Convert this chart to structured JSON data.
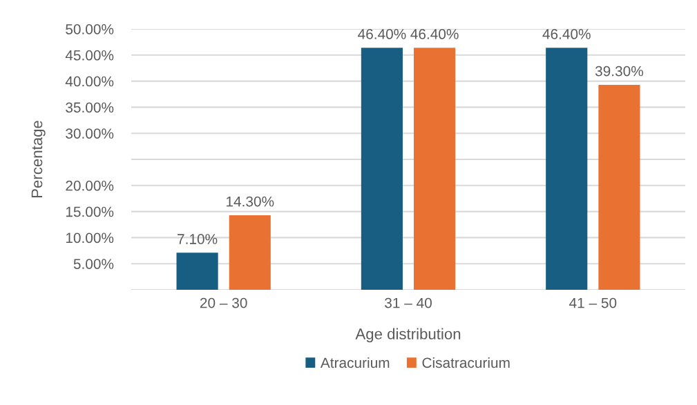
{
  "chart_data": {
    "type": "bar",
    "xlabel": "Age distribution",
    "ylabel": "Percentage",
    "categories": [
      "20 – 30",
      "31 – 40",
      "41 – 50"
    ],
    "series": [
      {
        "name": "Atracurium",
        "color": "#175e82",
        "values": [
          7.1,
          46.4,
          46.4
        ]
      },
      {
        "name": "Cisatracurium",
        "color": "#e97132",
        "values": [
          14.3,
          46.4,
          39.3
        ]
      }
    ],
    "value_labels": [
      [
        "7.10%",
        "46.40%",
        "46.40%"
      ],
      [
        "14.30%",
        "46.40%",
        "39.30%"
      ]
    ],
    "ylim": [
      0,
      50
    ],
    "yticks": [
      {
        "value": 0,
        "label": null
      },
      {
        "value": 5,
        "label": "5.00%"
      },
      {
        "value": 10,
        "label": "10.00%"
      },
      {
        "value": 15,
        "label": "15.00%"
      },
      {
        "value": 20,
        "label": "20.00%"
      },
      {
        "value": 25,
        "label": null
      },
      {
        "value": 30,
        "label": "30.00%"
      },
      {
        "value": 35,
        "label": "35.00%"
      },
      {
        "value": 40,
        "label": "40.00%"
      },
      {
        "value": 45,
        "label": "45.00%"
      },
      {
        "value": 50,
        "label": "50.00%"
      }
    ],
    "grid": "y",
    "legend": "bottom"
  }
}
